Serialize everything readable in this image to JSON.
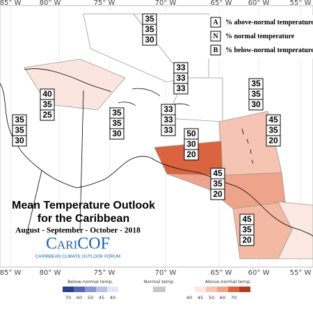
{
  "longitudes_top": [
    "85° W",
    "80° W",
    "75° W",
    "70° W",
    "65° W",
    "60° W",
    "55° W"
  ],
  "longitudes_bottom": [
    "85° W",
    "80° W",
    "75° W",
    "70° W",
    "65° W",
    "60° W",
    "55° W"
  ],
  "legend": [
    {
      "key": "A",
      "text": "% above-normal temperature"
    },
    {
      "key": "N",
      "text": "% normal temperature"
    },
    {
      "key": "B",
      "text": "% below-normal temperature"
    }
  ],
  "regions": [
    [
      35,
      35,
      30
    ],
    [
      40,
      35,
      25
    ],
    [
      35,
      35,
      30
    ],
    [
      35,
      35,
      30
    ],
    [
      33,
      33,
      33
    ],
    [
      33,
      33,
      33
    ],
    [
      35,
      35,
      30
    ],
    [
      45,
      35,
      20
    ],
    [
      50,
      30,
      20
    ],
    [
      45,
      35,
      20
    ],
    [
      45,
      35,
      20
    ]
  ],
  "title": "Mean Temperature Outlook",
  "title_line2": "for the Caribbean",
  "period": "August - September - October - 2018",
  "logo": "CariCOF",
  "logo_subtitle": "CARIBBEAN CLIMATE OUTLOOK FORUM",
  "colorbar": {
    "below_label": "Below-normal temp.",
    "below_ticks": [
      70,
      60,
      50,
      45,
      40
    ],
    "normal_label": "Normal temp.",
    "above_label": "Above-normal temp.",
    "above_ticks": [
      40,
      45,
      50,
      60,
      70
    ]
  }
}
